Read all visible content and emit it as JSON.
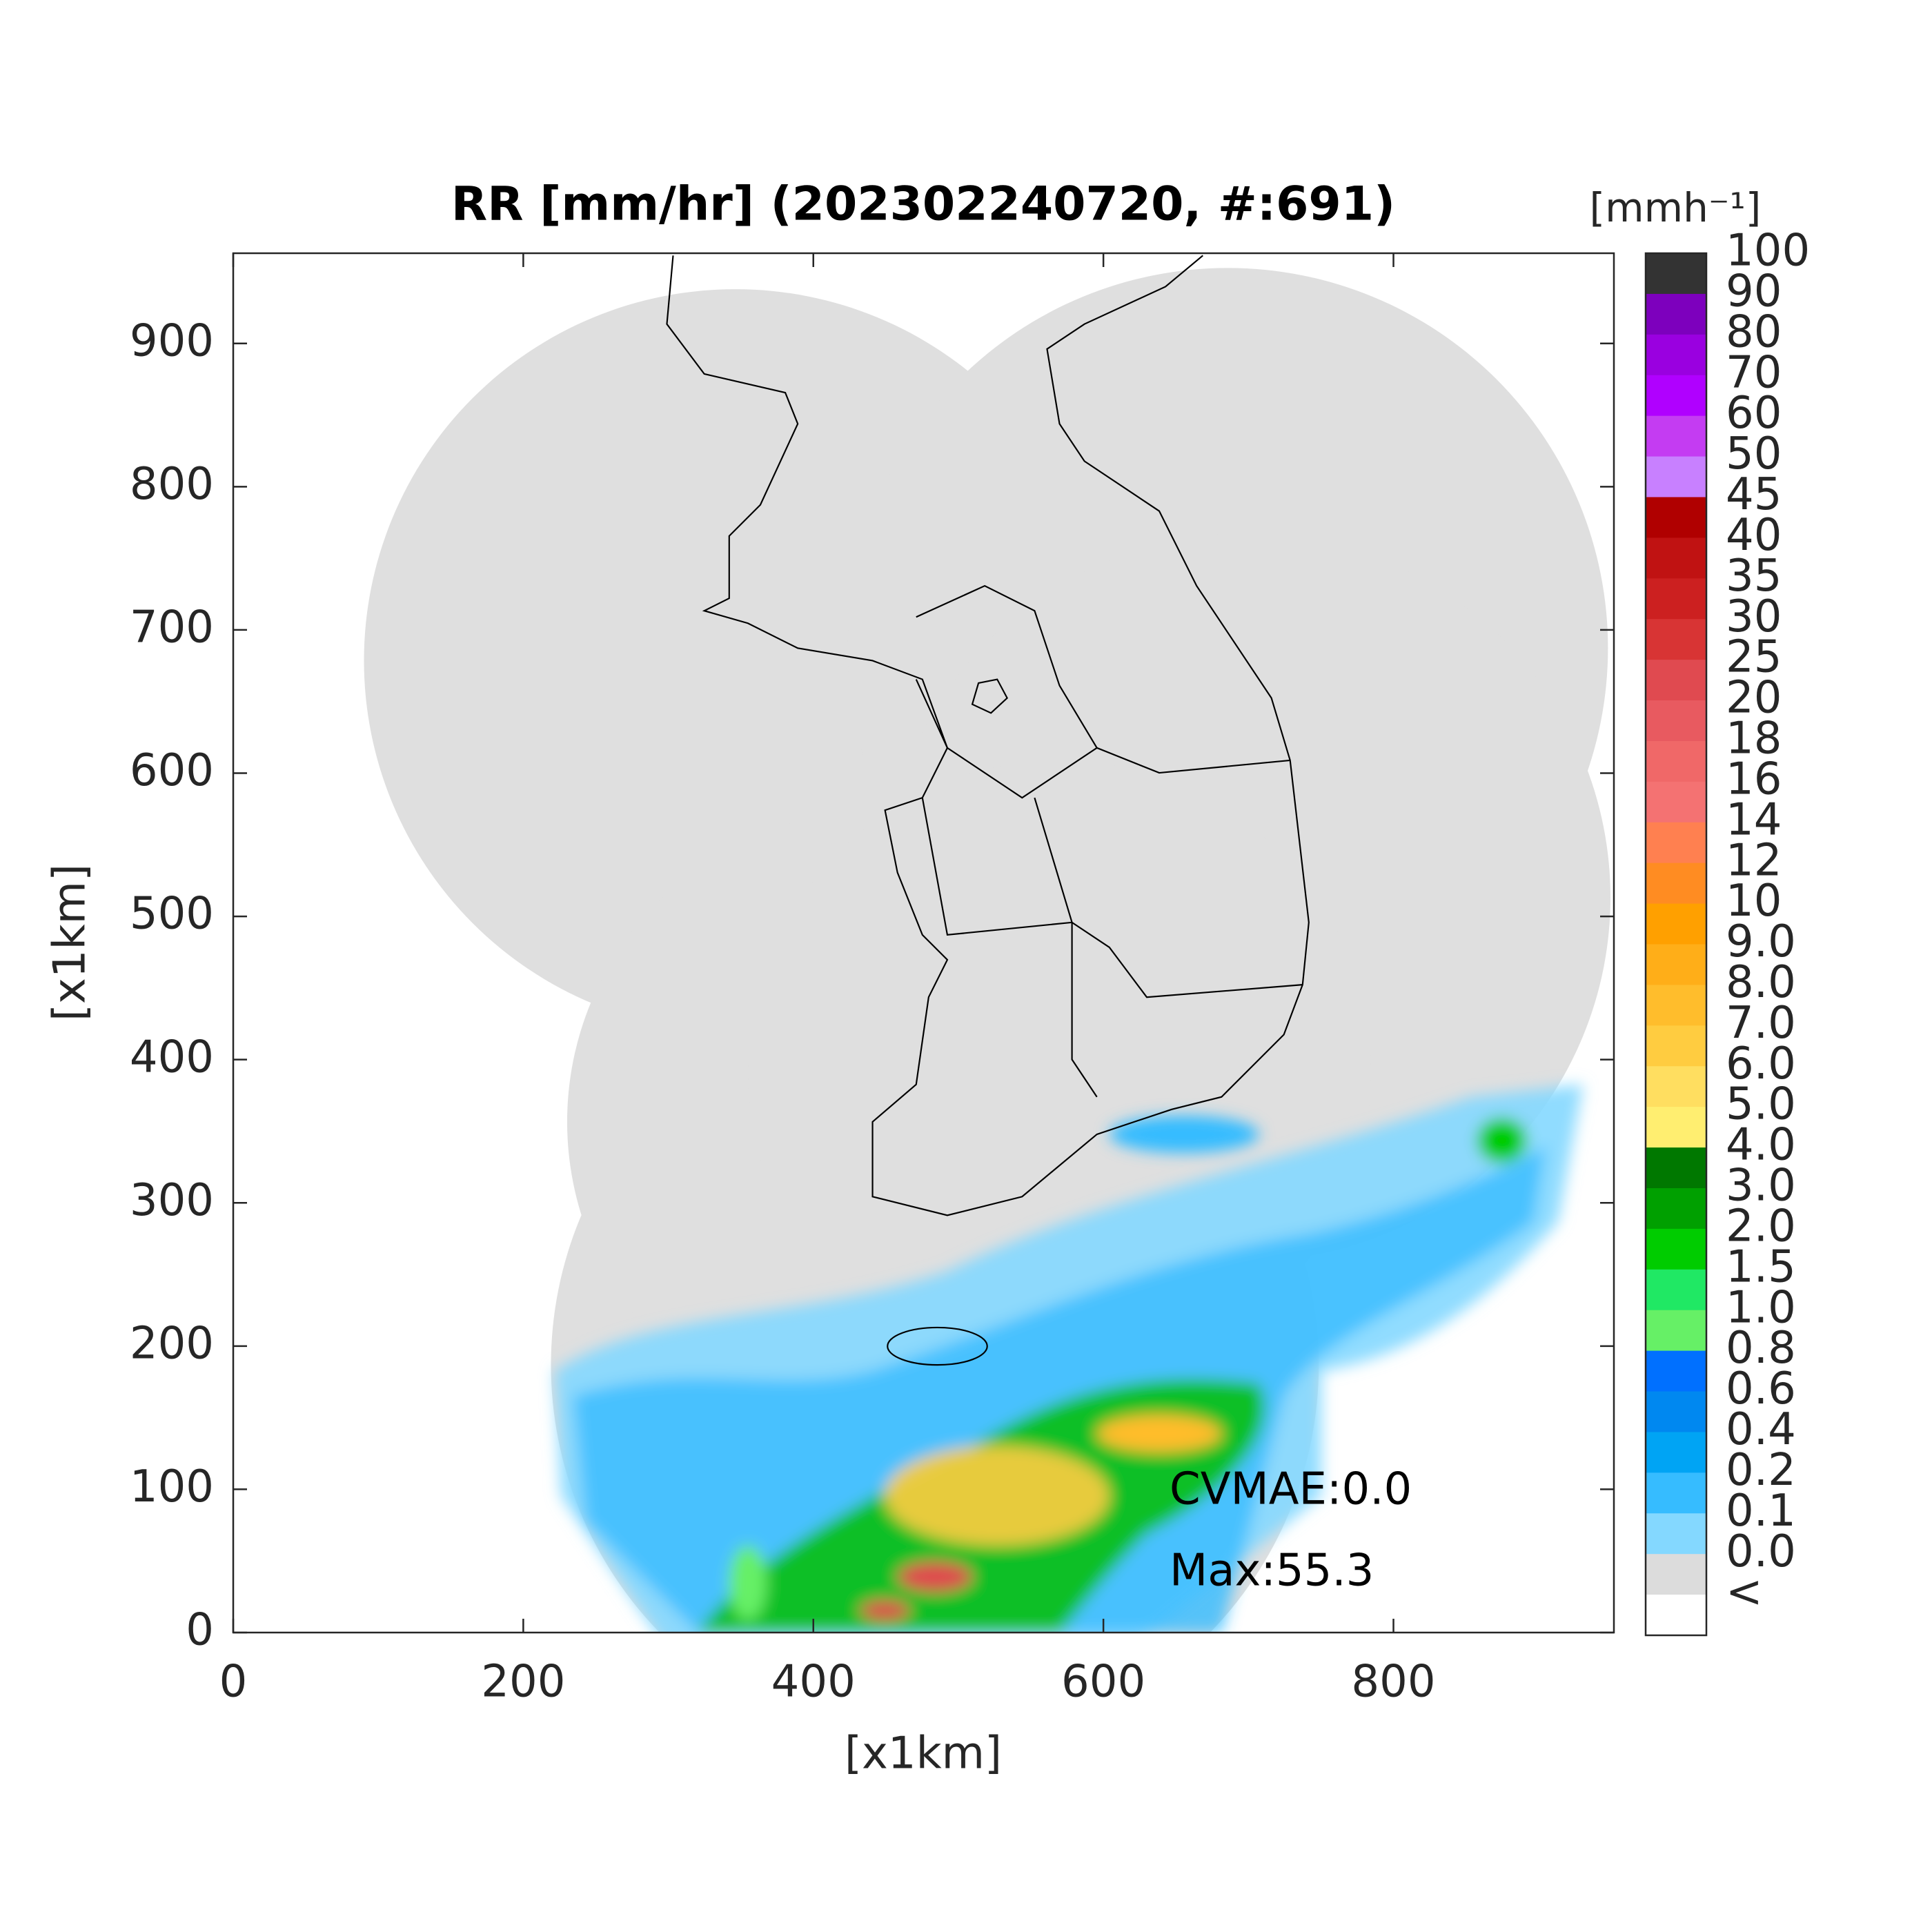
{
  "chart_data": {
    "type": "radar-map",
    "title": "RR [mm/hr] (202302240720, #:691)",
    "x_label": "[x1km]",
    "y_label": "[x1km]",
    "xlim": [
      0,
      952
    ],
    "ylim": [
      0,
      963
    ],
    "xticks": [
      0,
      200,
      400,
      600,
      800
    ],
    "yticks": [
      0,
      100,
      200,
      300,
      400,
      500,
      600,
      700,
      800,
      900
    ],
    "annotations": [
      "CVMAE:0.0",
      "Max:55.3"
    ],
    "colorbar": {
      "unit_label": "[mmh⁻¹]",
      "labels": [
        "100",
        "90",
        "80",
        "70",
        "60",
        "50",
        "45",
        "40",
        "35",
        "30",
        "25",
        "20",
        "18",
        "16",
        "14",
        "12",
        "10",
        "9.0",
        "8.0",
        "7.0",
        "6.0",
        "5.0",
        "4.0",
        "3.0",
        "2.0",
        "1.5",
        "1.0",
        "0.8",
        "0.6",
        "0.4",
        "0.2",
        "0.1",
        "0.0",
        "<"
      ],
      "colors": [
        "#333333",
        "#7d00bd",
        "#9a00e0",
        "#b000ff",
        "#c43cf2",
        "#c880ff",
        "#b00000",
        "#c01212",
        "#cc2020",
        "#d83434",
        "#e04a50",
        "#e85a60",
        "#f06868",
        "#f47272",
        "#ff8050",
        "#ff8c22",
        "#ffa000",
        "#ffae18",
        "#ffbd2c",
        "#ffcc40",
        "#ffde60",
        "#ffee70",
        "#007800",
        "#00a000",
        "#00cc00",
        "#20e864",
        "#66f066",
        "#0070ff",
        "#0088f0",
        "#00a4f4",
        "#36bcff",
        "#84d8ff",
        "#dcdcdc",
        "#ffffff"
      ]
    }
  }
}
